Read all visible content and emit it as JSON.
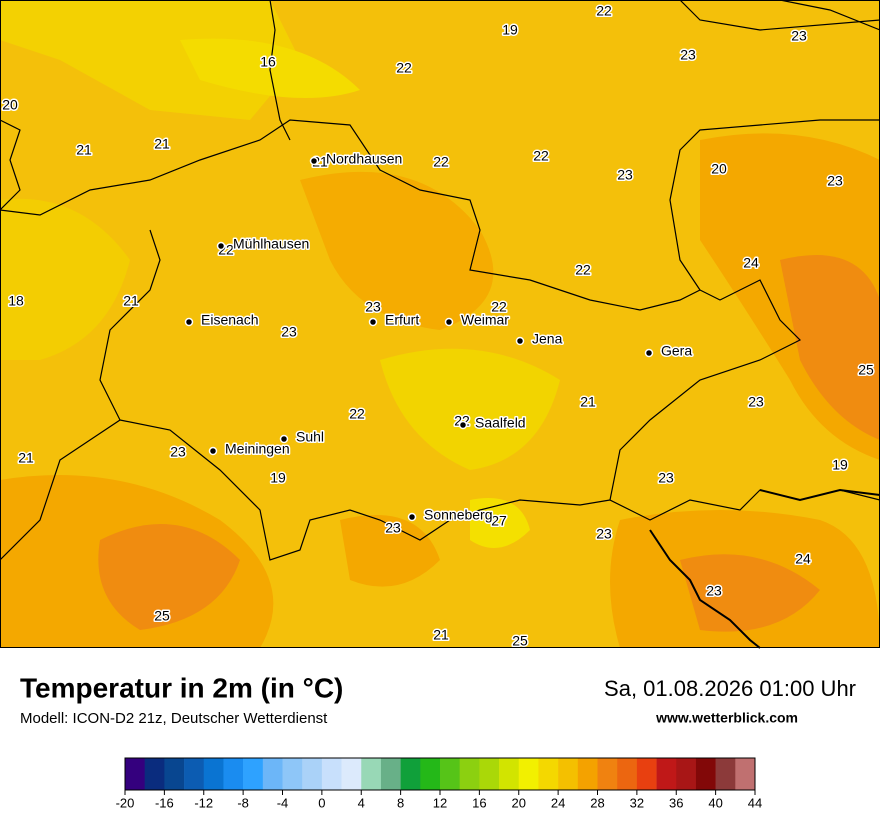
{
  "header": {
    "title": "Temperatur in 2m (in °C)",
    "subtitle": "Modell: ICON-D2 21z, Deutscher Wetterdienst",
    "datetime": "Sa, 01.08.2026 01:00 Uhr",
    "source": "www.wetterblick.com"
  },
  "cities": [
    "Nordhausen",
    "Mühlhausen",
    "Eisenach",
    "Erfurt",
    "Weimar",
    "Jena",
    "Gera",
    "Suhl",
    "Meiningen",
    "Saalfeld",
    "Sonneberg"
  ],
  "temperature_labels": [
    22,
    19,
    23,
    23,
    16,
    22,
    20,
    21,
    21,
    21,
    22,
    22,
    23,
    20,
    23,
    22,
    24,
    22,
    18,
    21,
    23,
    22,
    23,
    25,
    21,
    23,
    22,
    22,
    23,
    21,
    19,
    19,
    23,
    27,
    23,
    23,
    24,
    23,
    25,
    21,
    25
  ],
  "colorbar": {
    "colors": [
      "#34007e",
      "#0a2c7e",
      "#084690",
      "#0c5cb2",
      "#0a74d2",
      "#1a8cf0",
      "#2ea2ff",
      "#6cb6f8",
      "#8ec6f8",
      "#aad2f8",
      "#c8e0fc",
      "#dceafc",
      "#98d8b6",
      "#68b088",
      "#10a03a",
      "#24b818",
      "#56c418",
      "#8cd010",
      "#aad808",
      "#d2e400",
      "#f2f000",
      "#f4d800",
      "#f4c000",
      "#f4a200",
      "#f08210",
      "#ec6610",
      "#e84010",
      "#c01818",
      "#a81616",
      "#820808",
      "#8c3a3a",
      "#c07070"
    ],
    "ticks": [
      -20,
      -16,
      -12,
      -8,
      -4,
      0,
      4,
      8,
      12,
      16,
      20,
      24,
      28,
      32,
      36,
      40,
      44
    ]
  }
}
